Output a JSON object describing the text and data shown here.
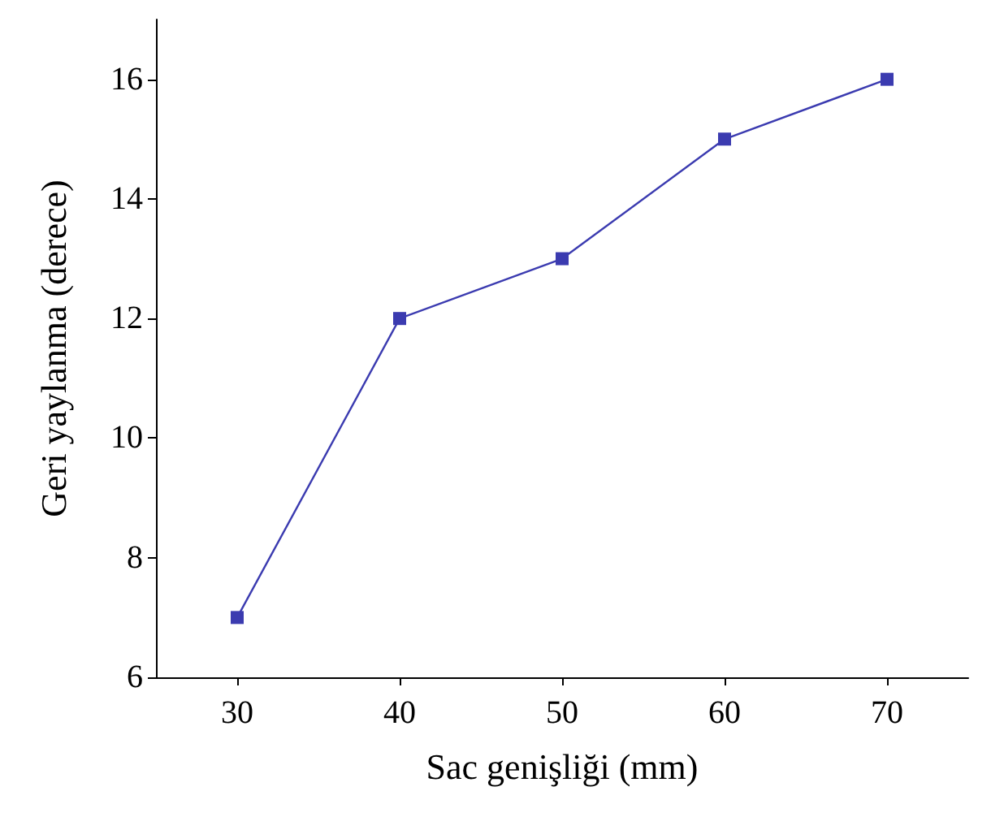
{
  "chart_data": {
    "type": "line",
    "xlabel": "Sac genişliği (mm)",
    "ylabel": "Geri yaylanma (derece)",
    "x": [
      30,
      40,
      50,
      60,
      70
    ],
    "series": [
      {
        "color": "#3b3bb0",
        "values": [
          7,
          12,
          13,
          15,
          16
        ]
      }
    ],
    "xlim": [
      25,
      75
    ],
    "xticks": [
      30,
      40,
      50,
      60,
      70
    ],
    "ylim": [
      6,
      17
    ],
    "yticks": [
      6,
      8,
      10,
      12,
      14,
      16
    ],
    "grid": false,
    "marker": "square",
    "line_style": "solid"
  }
}
